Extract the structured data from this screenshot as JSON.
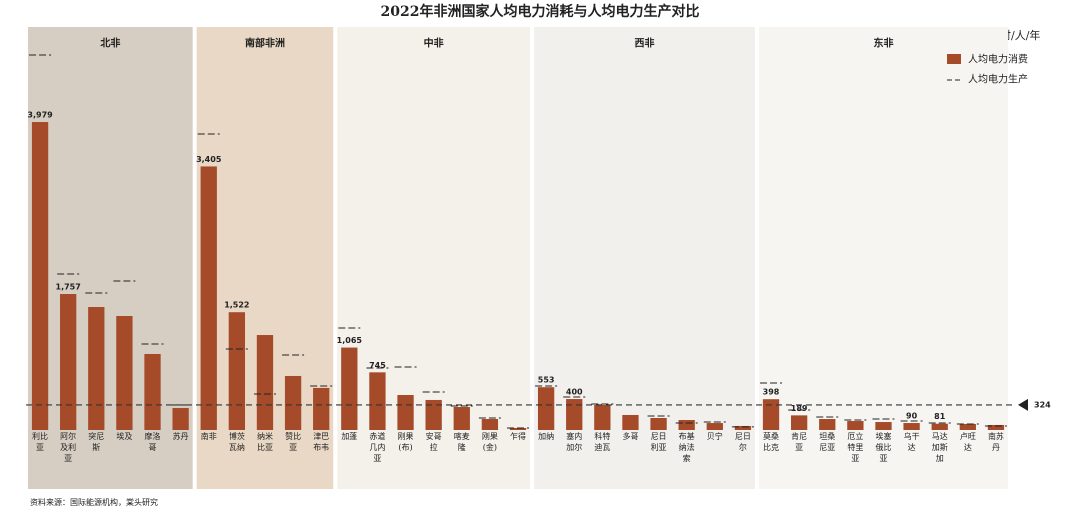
{
  "chart_data": {
    "type": "bar",
    "title": "2022年非洲国家人均电力消耗与人均电力生产对比",
    "unit": "单位：千瓦时/人/年",
    "source": "资料来源：国际能源机构，棠头研究",
    "categories": [
      "利比亚",
      "阿尔及利亚",
      "突尼斯",
      "埃及",
      "摩洛哥",
      "苏丹",
      "南非",
      "博茨瓦纳",
      "纳米比亚",
      "赞比亚",
      "津巴布韦",
      "加蓬",
      "赤道几内亚",
      "刚果(布)",
      "安哥拉",
      "喀麦隆",
      "刚果(金)",
      "乍得",
      "加纳",
      "塞内加尔",
      "科特迪瓦",
      "多哥",
      "尼日利亚",
      "布基纳法索",
      "贝宁",
      "尼日尔",
      "莫桑比克",
      "肯尼亚",
      "坦桑尼亚",
      "厄立特里亚",
      "埃塞俄比亚",
      "乌干达",
      "马达加斯加",
      "卢旺达",
      "南苏丹"
    ],
    "series": [
      {
        "name": "人均电力消费",
        "color": "#a64b2a",
        "values": [
          3979,
          1757,
          1589,
          1473,
          982,
          284,
          3405,
          1522,
          1227,
          698,
          543,
          1065,
          745,
          452,
          388,
          297,
          142,
          26,
          553,
          400,
          323,
          194,
          155,
          129,
          90,
          52,
          398,
          189,
          142,
          116,
          103,
          90,
          81,
          78,
          65
        ],
        "value_labels": [
          "3,979",
          "1,757",
          null,
          null,
          null,
          null,
          "3,405",
          "1,522",
          null,
          null,
          null,
          "1,065",
          "745",
          null,
          null,
          null,
          null,
          null,
          "553",
          "400",
          null,
          null,
          null,
          null,
          null,
          null,
          "398",
          "189",
          null,
          null,
          null,
          "90",
          "81",
          null,
          null
        ]
      },
      {
        "name": "人均电力生产",
        "color": "#222222",
        "values": [
          4845,
          2016,
          1770,
          1925,
          1111,
          323,
          3824,
          1047,
          465,
          969,
          568,
          1318,
          801,
          814,
          491,
          310,
          155,
          26,
          568,
          426,
          336,
          null,
          181,
          90,
          103,
          40,
          607,
          258,
          168,
          129,
          142,
          116,
          90,
          78,
          52
        ]
      }
    ],
    "regions": [
      {
        "name": "北非",
        "first": "利比亚",
        "last": "苏丹",
        "color": "#d7cec3"
      },
      {
        "name": "南部非洲",
        "first": "南非",
        "last": "津巴布韦",
        "color": "#e9d8c5"
      },
      {
        "name": "中非",
        "first": "加蓬",
        "last": "乍得",
        "color": "#f4f0ea"
      },
      {
        "name": "西非",
        "first": "加纳",
        "last": "尼日尔",
        "color": "#f2f0ed"
      },
      {
        "name": "东非",
        "first": "莫桑比克",
        "last": "南苏丹",
        "color": "#f7f5f2"
      }
    ],
    "reference_line": {
      "value": 324,
      "label": "324"
    },
    "ylim": [
      0,
      5000
    ]
  }
}
